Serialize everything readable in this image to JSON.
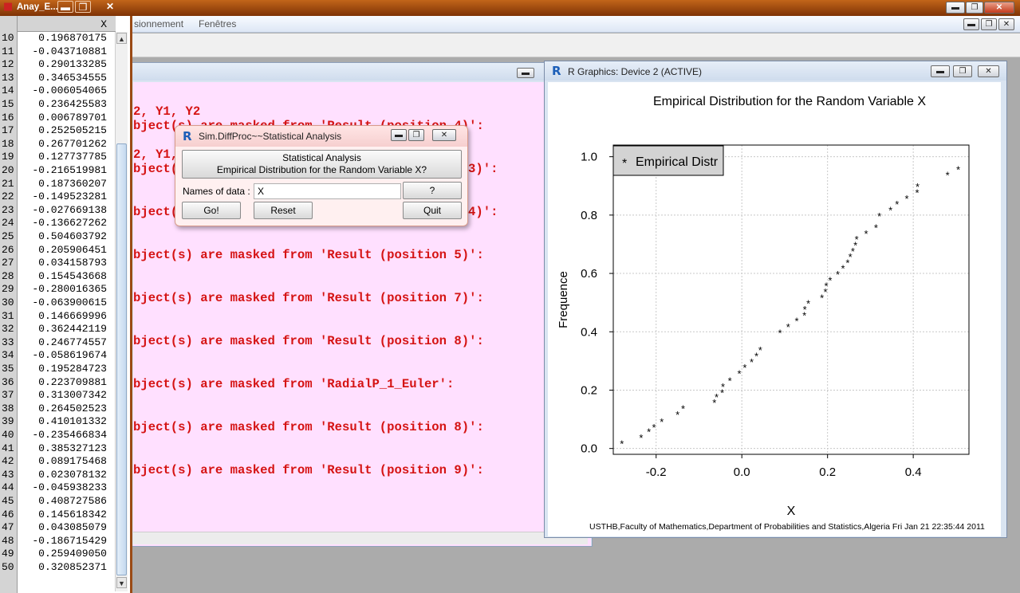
{
  "main_window": {
    "menu": [
      {
        "label": "sionnement"
      },
      {
        "label": "Fenêtres"
      }
    ]
  },
  "data_editor": {
    "title": "Anay_E...",
    "column_header": "X",
    "rows": [
      {
        "n": "10",
        "v": "0.196870175"
      },
      {
        "n": "11",
        "v": "-0.043710881"
      },
      {
        "n": "12",
        "v": "0.290133285"
      },
      {
        "n": "13",
        "v": "0.346534555"
      },
      {
        "n": "14",
        "v": "-0.006054065"
      },
      {
        "n": "15",
        "v": "0.236425583"
      },
      {
        "n": "16",
        "v": "0.006789701"
      },
      {
        "n": "17",
        "v": "0.252505215"
      },
      {
        "n": "18",
        "v": "0.267701262"
      },
      {
        "n": "19",
        "v": "0.127737785"
      },
      {
        "n": "20",
        "v": "-0.216519981"
      },
      {
        "n": "21",
        "v": "0.187360207"
      },
      {
        "n": "22",
        "v": "-0.149523281"
      },
      {
        "n": "23",
        "v": "-0.027669138"
      },
      {
        "n": "24",
        "v": "-0.136627262"
      },
      {
        "n": "25",
        "v": "0.504603792"
      },
      {
        "n": "26",
        "v": "0.205906451"
      },
      {
        "n": "27",
        "v": "0.034158793"
      },
      {
        "n": "28",
        "v": "0.154543668"
      },
      {
        "n": "29",
        "v": "-0.280016365"
      },
      {
        "n": "30",
        "v": "-0.063900615"
      },
      {
        "n": "31",
        "v": "0.146669996"
      },
      {
        "n": "32",
        "v": "0.362442119"
      },
      {
        "n": "33",
        "v": "0.246774557"
      },
      {
        "n": "34",
        "v": "-0.058619674"
      },
      {
        "n": "35",
        "v": "0.195284723"
      },
      {
        "n": "36",
        "v": "0.223709881"
      },
      {
        "n": "37",
        "v": "0.313007342"
      },
      {
        "n": "38",
        "v": "0.264502523"
      },
      {
        "n": "39",
        "v": "0.410101332"
      },
      {
        "n": "40",
        "v": "-0.235466834"
      },
      {
        "n": "41",
        "v": "0.385327123"
      },
      {
        "n": "42",
        "v": "0.089175468"
      },
      {
        "n": "43",
        "v": "0.023078132"
      },
      {
        "n": "44",
        "v": "-0.045938233"
      },
      {
        "n": "45",
        "v": "0.408727586"
      },
      {
        "n": "46",
        "v": "0.145618342"
      },
      {
        "n": "47",
        "v": "0.043085079"
      },
      {
        "n": "48",
        "v": "-0.186715429"
      },
      {
        "n": "49",
        "v": "0.259409050"
      },
      {
        "n": "50",
        "v": "0.320852371"
      }
    ]
  },
  "console": {
    "lines": [
      "2, Y1, Y2",
      "bject(s) are masked from 'Result (position 4)':",
      "2, Y1, Y",
      "bject(",
      "3)':",
      "bject(",
      "4)':",
      "bject(s) are masked from 'Result (position 5)':",
      "bject(s) are masked from 'Result (position 7)':",
      "bject(s) are masked from 'Result (position 8)':",
      "bject(s) are masked from 'RadialP_1_Euler':",
      "bject(s) are masked from 'Result (position 8)':",
      "bject(s) are masked from 'Result (position 9)':"
    ]
  },
  "dialog": {
    "title": "Sim.DiffProc~~Statistical Analysis",
    "header_line1": "Statistical Analysis",
    "header_line2": "Empirical Distribution for the Random Variable X?",
    "names_label": "Names of data :",
    "names_value": "X",
    "help_label": "?",
    "go_label": "Go!",
    "reset_label": "Reset",
    "quit_label": "Quit"
  },
  "graphics": {
    "title": "R Graphics: Device 2 (ACTIVE)"
  },
  "chart_data": {
    "type": "scatter",
    "title": "Empirical Distribution for the Random Variable X",
    "xlabel": "X",
    "ylabel": "Frequence",
    "xlim": [
      -0.3,
      0.53
    ],
    "ylim": [
      -0.02,
      1.04
    ],
    "xticks": [
      -0.2,
      0.0,
      0.2,
      0.4
    ],
    "xtick_labels": [
      "-0.2",
      "0.0",
      "0.2",
      "0.4"
    ],
    "yticks": [
      0.0,
      0.2,
      0.4,
      0.6,
      0.8,
      1.0
    ],
    "ytick_labels": [
      "0.0",
      "0.2",
      "0.4",
      "0.6",
      "0.8",
      "1.0"
    ],
    "grid": true,
    "legend": {
      "position": "top-left",
      "symbol": "*",
      "label": "Empirical Distr"
    },
    "marker": "*",
    "caption": "USTHB,Faculty of Mathematics,Department of Probabilities and Statistics,Algeria Fri Jan 21 22:35:44 2011",
    "x": [
      -0.28,
      -0.235,
      -0.217,
      -0.205,
      -0.187,
      -0.15,
      -0.137,
      -0.064,
      -0.059,
      -0.046,
      -0.044,
      -0.028,
      -0.006,
      0.007,
      0.023,
      0.034,
      0.043,
      0.089,
      0.108,
      0.128,
      0.146,
      0.147,
      0.155,
      0.187,
      0.195,
      0.197,
      0.206,
      0.224,
      0.236,
      0.247,
      0.253,
      0.259,
      0.265,
      0.268,
      0.29,
      0.313,
      0.321,
      0.347,
      0.362,
      0.385,
      0.409,
      0.41,
      0.48,
      0.505
    ],
    "y": [
      0.02,
      0.04,
      0.06,
      0.075,
      0.095,
      0.12,
      0.14,
      0.16,
      0.18,
      0.195,
      0.215,
      0.235,
      0.26,
      0.28,
      0.3,
      0.32,
      0.34,
      0.4,
      0.42,
      0.44,
      0.46,
      0.48,
      0.5,
      0.52,
      0.54,
      0.56,
      0.58,
      0.6,
      0.62,
      0.64,
      0.66,
      0.68,
      0.7,
      0.72,
      0.74,
      0.76,
      0.8,
      0.82,
      0.84,
      0.86,
      0.88,
      0.9,
      0.94,
      0.96
    ]
  }
}
